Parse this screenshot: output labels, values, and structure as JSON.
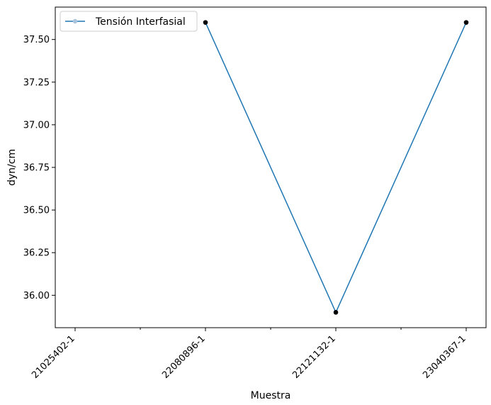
{
  "chart_data": {
    "type": "line",
    "categories": [
      "21025402-1",
      "22080896-1",
      "22121132-1",
      "23040367-1"
    ],
    "series": [
      {
        "name": "Tensión Interfasial",
        "values": [
          null,
          37.6,
          35.9,
          37.6
        ],
        "color": "#1f77b4",
        "marker_color": "#000000"
      }
    ],
    "xlabel": "Muestra",
    "ylabel": "dyn/cm",
    "ylim": [
      35.81,
      37.69
    ],
    "yticks": [
      "36.00",
      "36.25",
      "36.50",
      "36.75",
      "37.00",
      "37.25",
      "37.50"
    ],
    "ytick_values": [
      36.0,
      36.25,
      36.5,
      36.75,
      37.0,
      37.25,
      37.5
    ],
    "grid": false,
    "legend": {
      "placement": "top-left"
    }
  }
}
